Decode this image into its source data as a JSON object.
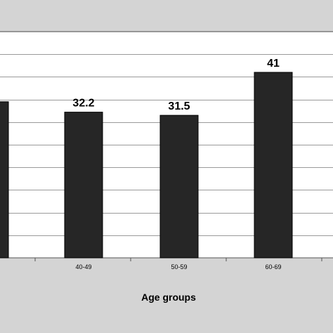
{
  "chart_data": {
    "type": "bar",
    "categories": [
      "",
      "40-49",
      "50-59",
      "60-69"
    ],
    "values": [
      34.5,
      32.2,
      31.5,
      41
    ],
    "data_labels": [
      "",
      "32.2",
      "31.5",
      "41"
    ],
    "xlabel": "Age groups",
    "ylim": [
      0,
      50
    ],
    "grid": true,
    "colors": {
      "bar": "#262626",
      "plot_bg": "#ffffff",
      "frame_bg": "#d4d4d4",
      "grid": "#9a9a9a"
    }
  }
}
